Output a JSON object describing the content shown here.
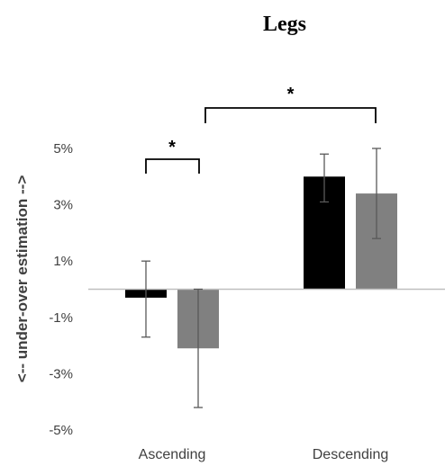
{
  "chart_data": {
    "type": "bar",
    "title": "Legs",
    "ylabel": "<-- under-over estimation -->",
    "xlabel": "",
    "categories": [
      "Ascending",
      "Descending"
    ],
    "ylim": [
      -5,
      5
    ],
    "y_ticks": [
      "5%",
      "3%",
      "1%",
      "-1%",
      "-3%",
      "-5%"
    ],
    "y_tick_values": [
      5,
      3,
      1,
      -1,
      -3,
      -5
    ],
    "grid": false,
    "legend": "none",
    "series": [
      {
        "values": [
          -0.3,
          4.0
        ],
        "error_low": [
          -1.7,
          3.1
        ],
        "error_high": [
          1.0,
          4.8
        ],
        "color": "#000000"
      },
      {
        "values": [
          -2.1,
          3.4
        ],
        "error_low": [
          -4.2,
          1.8
        ],
        "error_high": [
          0.0,
          5.0
        ],
        "color": "#808080"
      }
    ],
    "annotations": [
      {
        "text": "*",
        "between": "Ascending series 1 vs series 2"
      },
      {
        "text": "*",
        "between": "Ascending vs Descending"
      }
    ]
  }
}
